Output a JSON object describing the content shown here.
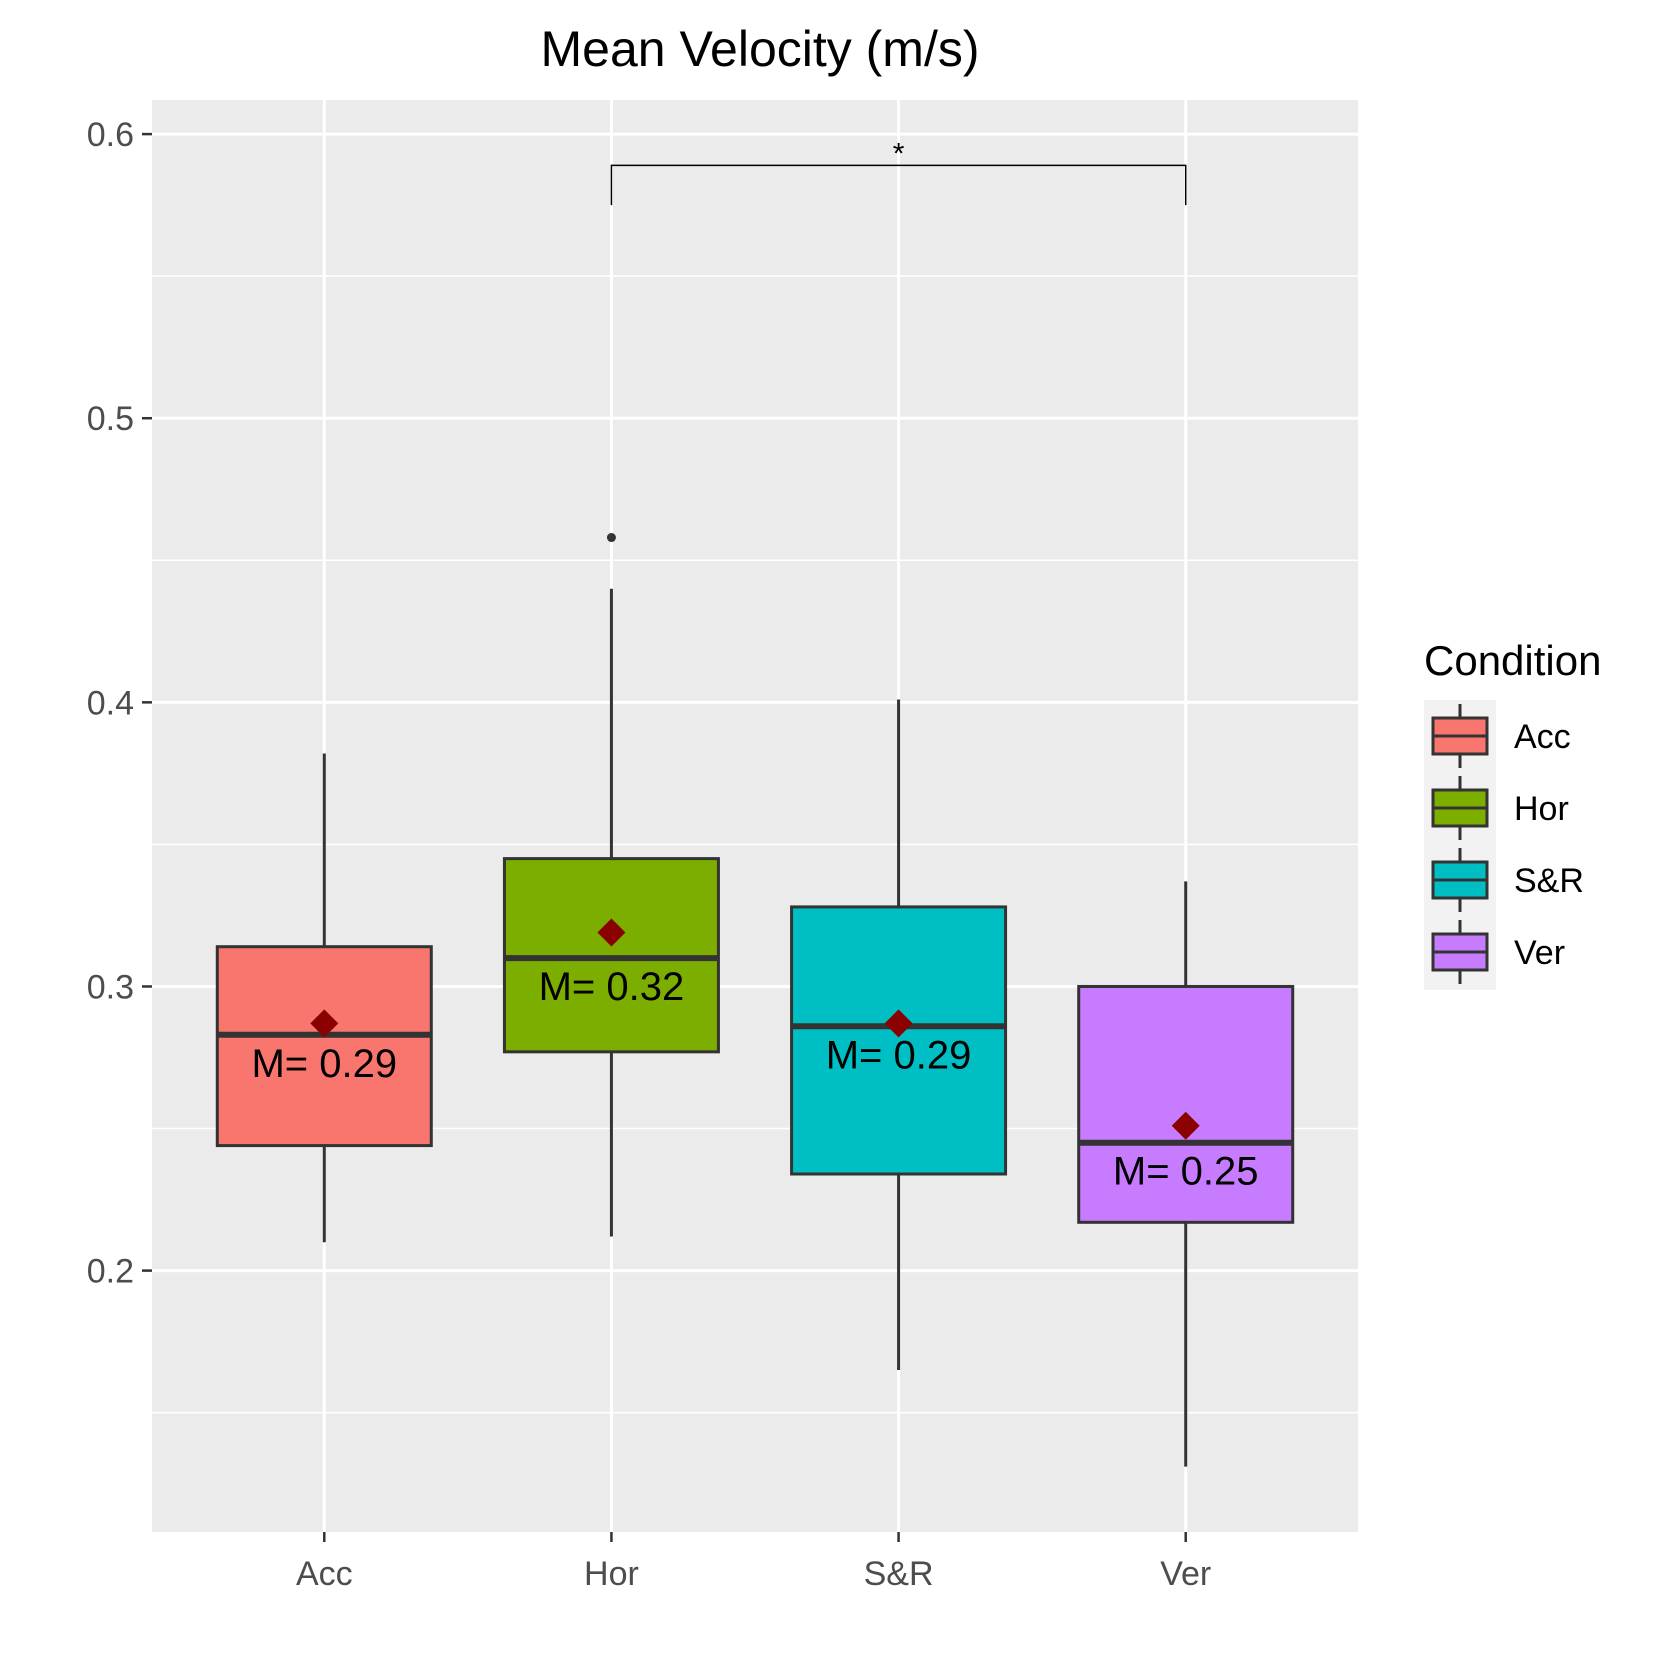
{
  "chart_data": {
    "type": "box",
    "title": "Mean Velocity (m/s)",
    "xlabel": "",
    "ylabel": "",
    "ylim": [
      0.108,
      0.612
    ],
    "y_ticks": [
      0.2,
      0.3,
      0.4,
      0.5,
      0.6
    ],
    "y_tick_labels": [
      "0.2",
      "0.3",
      "0.4",
      "0.5",
      "0.6"
    ],
    "grid": true,
    "categories": [
      "Acc",
      "Hor",
      "S&R",
      "Ver"
    ],
    "series": [
      {
        "category": "Acc",
        "fill": "#F8766D",
        "whisker_low": 0.21,
        "q1": 0.244,
        "median": 0.283,
        "q3": 0.314,
        "whisker_high": 0.382,
        "mean": 0.287,
        "mean_label": "M= 0.29",
        "outliers": []
      },
      {
        "category": "Hor",
        "fill": "#7CAE00",
        "whisker_low": 0.212,
        "q1": 0.277,
        "median": 0.31,
        "q3": 0.345,
        "whisker_high": 0.44,
        "mean": 0.319,
        "mean_label": "M= 0.32",
        "outliers": [
          0.458
        ]
      },
      {
        "category": "S&R",
        "fill": "#00BFC4",
        "whisker_low": 0.165,
        "q1": 0.234,
        "median": 0.286,
        "q3": 0.328,
        "whisker_high": 0.401,
        "mean": 0.287,
        "mean_label": "M= 0.29",
        "outliers": []
      },
      {
        "category": "Ver",
        "fill": "#C77CFF",
        "whisker_low": 0.131,
        "q1": 0.217,
        "median": 0.245,
        "q3": 0.3,
        "whisker_high": 0.337,
        "mean": 0.251,
        "mean_label": "M= 0.25",
        "outliers": []
      }
    ],
    "mean_marker_color": "#8B0000",
    "significance": {
      "from": "Hor",
      "to": "Ver",
      "y": 0.589,
      "tip_low": 0.575,
      "label": "*"
    },
    "legend": {
      "title": "Condition",
      "placement": "right",
      "items": [
        "Acc",
        "Hor",
        "S&R",
        "Ver"
      ]
    }
  }
}
